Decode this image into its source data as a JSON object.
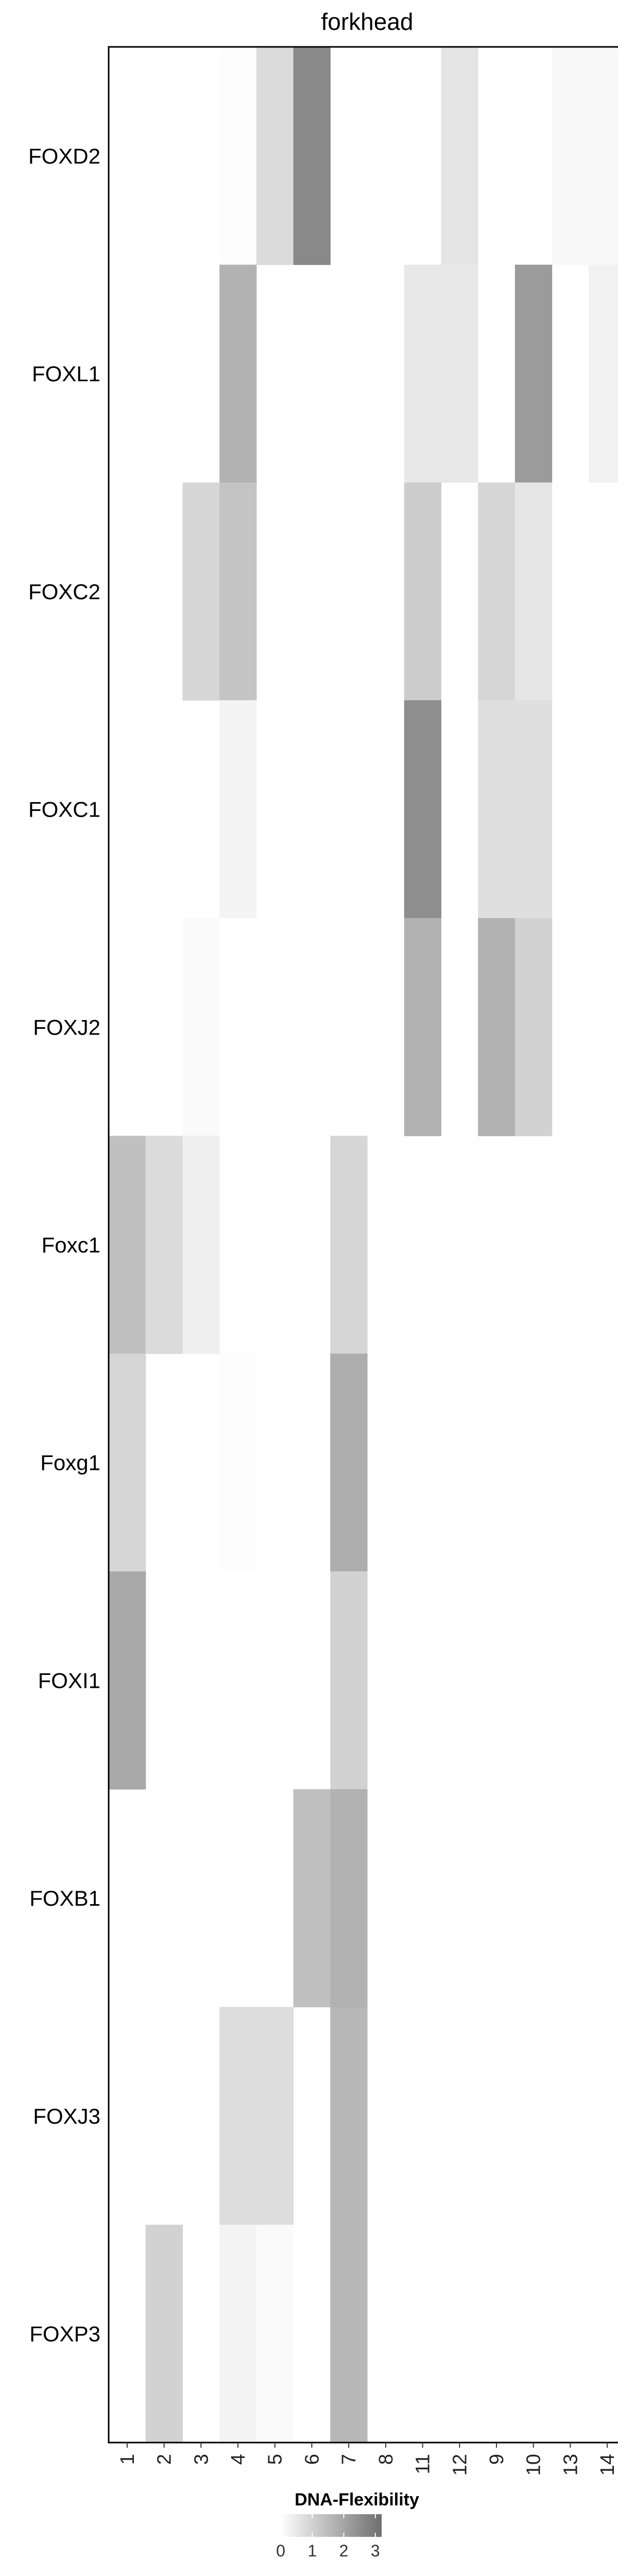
{
  "chart_data": {
    "type": "heatmap",
    "title": "forkhead",
    "rows": [
      "FOXD2",
      "FOXL1",
      "FOXC2",
      "FOXC1",
      "FOXJ2",
      "Foxc1",
      "Foxg1",
      "FOXI1",
      "FOXB1",
      "FOXJ3",
      "FOXP3"
    ],
    "columns": [
      "1",
      "2",
      "3",
      "4",
      "5",
      "6",
      "7",
      "8",
      "11",
      "12",
      "9",
      "10",
      "13",
      "14"
    ],
    "values": [
      [
        0,
        0,
        0,
        0.05,
        0.8,
        2.6,
        0,
        0,
        0,
        0.6,
        0,
        0,
        0.15,
        0.15
      ],
      [
        0,
        0,
        0,
        1.7,
        0,
        0,
        0,
        0,
        0.5,
        0.5,
        0,
        2.2,
        0,
        0.3
      ],
      [
        0,
        0,
        0.9,
        1.3,
        0,
        0,
        0,
        0,
        1.1,
        0,
        0.9,
        0.55,
        0,
        0
      ],
      [
        0,
        0,
        0,
        0.25,
        0,
        0,
        0,
        0,
        2.5,
        0,
        0.7,
        0.7,
        0,
        0
      ],
      [
        0,
        0,
        0.1,
        0,
        0,
        0,
        0,
        0,
        1.7,
        0,
        1.7,
        1.0,
        0,
        0
      ],
      [
        1.4,
        0.8,
        0.35,
        0,
        0,
        0,
        0.9,
        0,
        0,
        0,
        0,
        0,
        0,
        0
      ],
      [
        0.9,
        0,
        0,
        0.05,
        0,
        0,
        1.8,
        0,
        0,
        0,
        0,
        0,
        0,
        0
      ],
      [
        1.9,
        0,
        0,
        0,
        0,
        0,
        1.0,
        0,
        0,
        0,
        0,
        0,
        0,
        0
      ],
      [
        0,
        0,
        0,
        0,
        0,
        1.4,
        1.7,
        0,
        0,
        0,
        0,
        0,
        0,
        0
      ],
      [
        0,
        0,
        0,
        0.75,
        0.75,
        0,
        1.6,
        0,
        0,
        0,
        0,
        0,
        0,
        0
      ],
      [
        0,
        1.0,
        0,
        0.25,
        0.1,
        0,
        1.6,
        0,
        0,
        0,
        0,
        0,
        0,
        0
      ]
    ],
    "legend": {
      "title": "DNA-Flexibility",
      "ticks": [
        0,
        1,
        2,
        3
      ],
      "range": [
        0,
        3.2
      ],
      "position": "bottom"
    },
    "color_low": "#ffffff",
    "color_high": "#6e6e6e",
    "grid": false
  }
}
